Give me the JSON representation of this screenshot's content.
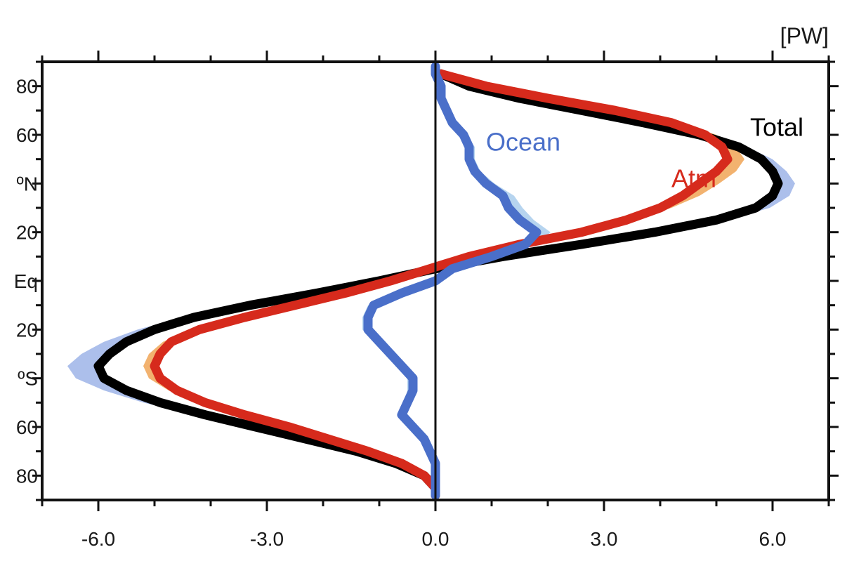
{
  "chart_data": {
    "type": "line",
    "title": "",
    "unit_label": "[PW]",
    "xlabel": "",
    "ylabel": "",
    "xlim": [
      -7.0,
      7.0
    ],
    "ylim": [
      -90,
      90
    ],
    "x_ticks": [
      {
        "value": -6.0,
        "label": "-6.0"
      },
      {
        "value": -3.0,
        "label": "-3.0"
      },
      {
        "value": 0.0,
        "label": "0.0"
      },
      {
        "value": 3.0,
        "label": "3.0"
      },
      {
        "value": 6.0,
        "label": "6.0"
      }
    ],
    "y_ticks": [
      {
        "value": 80,
        "label": "80"
      },
      {
        "value": 60,
        "label": "60"
      },
      {
        "value": 40,
        "label": "ºN"
      },
      {
        "value": 20,
        "label": "20"
      },
      {
        "value": 0,
        "label": "Eq"
      },
      {
        "value": -20,
        "label": "20"
      },
      {
        "value": -40,
        "label": "ºS"
      },
      {
        "value": -60,
        "label": "60"
      },
      {
        "value": -80,
        "label": "80"
      }
    ],
    "zero_line": true,
    "grid": false,
    "series": [
      {
        "name": "Total",
        "color": "#000000",
        "band_color": "#9db4e8",
        "label_lat": 63,
        "label_pw": 5.6,
        "lat": [
          85,
          80,
          75,
          70,
          65,
          60,
          55,
          50,
          45,
          40,
          35,
          30,
          25,
          20,
          15,
          10,
          5,
          0,
          -5,
          -10,
          -15,
          -20,
          -25,
          -30,
          -35,
          -40,
          -45,
          -50,
          -55,
          -60,
          -65,
          -70,
          -75,
          -80,
          -85,
          -88
        ],
        "pw": [
          0.1,
          0.6,
          1.5,
          2.6,
          3.7,
          4.7,
          5.4,
          5.8,
          6.0,
          6.1,
          6.0,
          5.7,
          5.0,
          3.9,
          2.6,
          1.2,
          0.0,
          -1.0,
          -2.1,
          -3.3,
          -4.3,
          -5.0,
          -5.5,
          -5.8,
          -6.0,
          -5.9,
          -5.5,
          -4.9,
          -4.1,
          -3.2,
          -2.3,
          -1.4,
          -0.7,
          -0.2,
          0.0,
          0.0
        ],
        "band": [
          0.0,
          0.0,
          0.0,
          0.1,
          0.1,
          0.1,
          0.15,
          0.2,
          0.25,
          0.3,
          0.3,
          0.25,
          0.2,
          0.15,
          0.1,
          0.05,
          0.05,
          0.05,
          0.1,
          0.15,
          0.2,
          0.3,
          0.4,
          0.5,
          0.55,
          0.5,
          0.4,
          0.3,
          0.2,
          0.15,
          0.1,
          0.05,
          0.0,
          0.0,
          0.0,
          0.0
        ]
      },
      {
        "name": "Atm",
        "color": "#d62a1c",
        "band_color": "#f0a456",
        "label_lat": 42,
        "label_pw": 4.2,
        "lat": [
          85,
          80,
          75,
          70,
          65,
          60,
          55,
          50,
          45,
          40,
          35,
          30,
          25,
          20,
          15,
          10,
          5,
          0,
          -5,
          -10,
          -15,
          -20,
          -25,
          -30,
          -35,
          -40,
          -45,
          -50,
          -55,
          -60,
          -65,
          -70,
          -75,
          -80,
          -85,
          -88
        ],
        "pw": [
          0.1,
          0.9,
          2.0,
          3.2,
          4.2,
          4.8,
          5.1,
          5.2,
          5.0,
          4.7,
          4.4,
          4.0,
          3.4,
          2.6,
          1.5,
          0.6,
          -0.1,
          -0.8,
          -1.6,
          -2.5,
          -3.4,
          -4.2,
          -4.7,
          -4.9,
          -5.0,
          -4.9,
          -4.6,
          -4.1,
          -3.4,
          -2.6,
          -1.9,
          -1.2,
          -0.6,
          -0.2,
          0.0,
          0.0
        ],
        "band": [
          0.0,
          0.0,
          0.1,
          0.1,
          0.15,
          0.2,
          0.25,
          0.3,
          0.35,
          0.35,
          0.3,
          0.2,
          0.15,
          0.1,
          0.05,
          0.05,
          0.05,
          0.05,
          0.05,
          0.1,
          0.1,
          0.15,
          0.15,
          0.2,
          0.2,
          0.2,
          0.15,
          0.15,
          0.1,
          0.1,
          0.05,
          0.05,
          0.0,
          0.0,
          0.0,
          0.0
        ]
      },
      {
        "name": "Ocean",
        "color": "#4a6fc9",
        "band_color": "#a9cdec",
        "label_lat": 57,
        "label_pw": 0.9,
        "lat": [
          88,
          85,
          80,
          75,
          70,
          65,
          60,
          55,
          50,
          45,
          40,
          35,
          30,
          25,
          20,
          15,
          10,
          5,
          0,
          -5,
          -10,
          -15,
          -20,
          -25,
          -30,
          -35,
          -40,
          -45,
          -50,
          -55,
          -60,
          -65,
          -70,
          -75,
          -80,
          -85,
          -88
        ],
        "pw": [
          0.0,
          0.0,
          0.1,
          0.1,
          0.2,
          0.3,
          0.5,
          0.6,
          0.6,
          0.7,
          0.9,
          1.2,
          1.3,
          1.5,
          1.8,
          1.6,
          1.0,
          0.3,
          0.0,
          -0.6,
          -1.1,
          -1.2,
          -1.2,
          -1.0,
          -0.8,
          -0.6,
          -0.4,
          -0.4,
          -0.5,
          -0.6,
          -0.4,
          -0.2,
          -0.1,
          0.0,
          0.0,
          0.0,
          0.0
        ],
        "band": [
          0.0,
          0.05,
          0.05,
          0.05,
          0.05,
          0.05,
          0.05,
          0.1,
          0.1,
          0.1,
          0.15,
          0.2,
          0.25,
          0.25,
          0.25,
          0.2,
          0.15,
          0.1,
          0.05,
          0.05,
          0.1,
          0.1,
          0.1,
          0.1,
          0.1,
          0.1,
          0.1,
          0.1,
          0.05,
          0.05,
          0.05,
          0.05,
          0.05,
          0.0,
          0.0,
          0.0,
          0.0
        ]
      }
    ]
  }
}
